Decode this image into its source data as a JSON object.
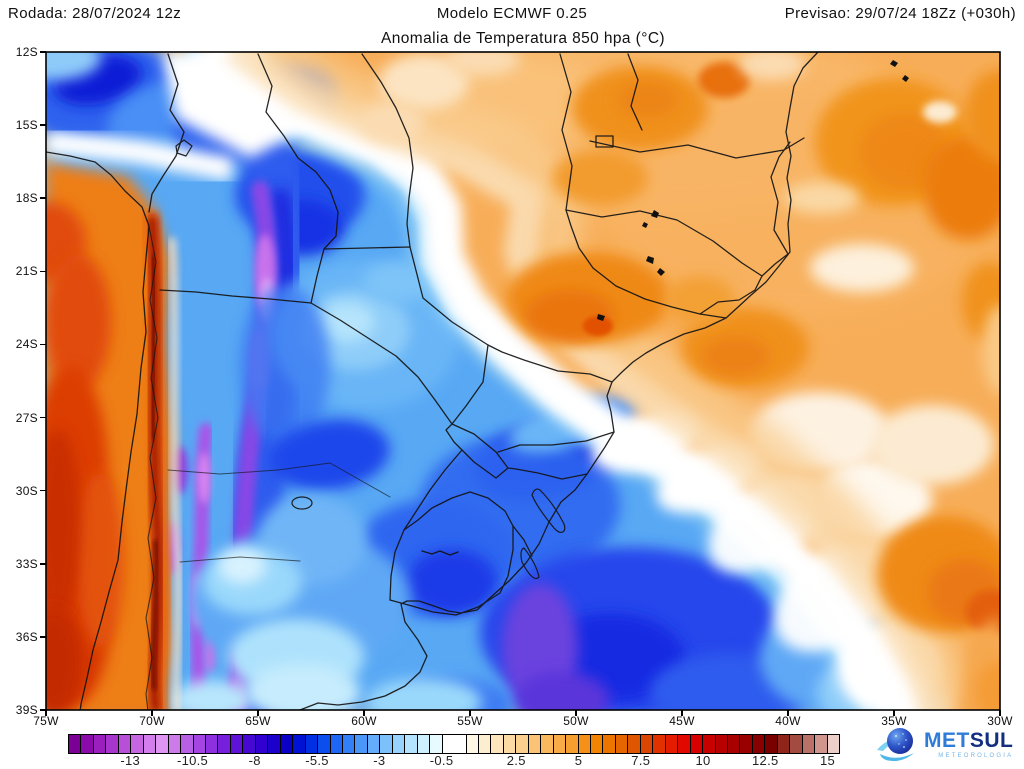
{
  "header": {
    "run_label": "Rodada: 28/07/2024 12z",
    "model_label": "Modelo ECMWF 0.25",
    "forecast_label": "Previsao: 29/07/24 18Zz (+030h)"
  },
  "title": "Anomalia de Temperatura 850 hpa (°C)",
  "axes": {
    "lat_labels": [
      "12S",
      "15S",
      "18S",
      "21S",
      "24S",
      "27S",
      "30S",
      "33S",
      "36S",
      "39S"
    ],
    "lon_labels": [
      "75W",
      "70W",
      "65W",
      "60W",
      "55W",
      "50W",
      "45W",
      "40W",
      "35W",
      "30W"
    ]
  },
  "colorbar": {
    "min": -15.5,
    "max": 15.5,
    "tick_labels": [
      "-13",
      "-10.5",
      "-8",
      "-5.5",
      "-3",
      "-0.5",
      "2.5",
      "5",
      "7.5",
      "10",
      "12.5",
      "15"
    ],
    "tick_values": [
      -13,
      -10.5,
      -8,
      -5.5,
      -3,
      -0.5,
      2.5,
      5,
      7.5,
      10,
      12.5,
      15
    ],
    "wide_cell_index": 30,
    "cell_colors": [
      "#7B0096",
      "#8A0AAA",
      "#9A1FBC",
      "#A936CC",
      "#B84FD9",
      "#C666E3",
      "#D37EEC",
      "#DF96F3",
      "#CD7BE9",
      "#B95FE6",
      "#A444E3",
      "#8E2FE0",
      "#7720DC",
      "#5F13D8",
      "#4708D4",
      "#3200D0",
      "#1C00CC",
      "#0B00C8",
      "#0012D4",
      "#0030E2",
      "#0C4DEE",
      "#1F66F4",
      "#337FF8",
      "#4A97FA",
      "#63ADFB",
      "#7DC1FC",
      "#98D3FD",
      "#B3E3FE",
      "#CEF0FE",
      "#E7FAFF",
      "#FFFFFF",
      "#FFF7E6",
      "#FEEED0",
      "#FDE4BA",
      "#FCDAA3",
      "#FBCF8C",
      "#FAC375",
      "#F9B75E",
      "#F8AB47",
      "#F69E30",
      "#F59119",
      "#F28403",
      "#EC7500",
      "#E56600",
      "#DE5600",
      "#DA4503",
      "#E13100",
      "#E51C00",
      "#E10800",
      "#D60000",
      "#C80000",
      "#B80000",
      "#A80000",
      "#980000",
      "#880000",
      "#7A0000",
      "#8F241A",
      "#A34B41",
      "#BA7168",
      "#D0968E",
      "#ECCFC8"
    ]
  },
  "logo": {
    "met": "MET",
    "sul": "SUL",
    "tagline": "METEOROLOGIA",
    "met_color": "#2F7CD8",
    "sul_color": "#152F80",
    "tagline_color": "#76B4E4"
  }
}
